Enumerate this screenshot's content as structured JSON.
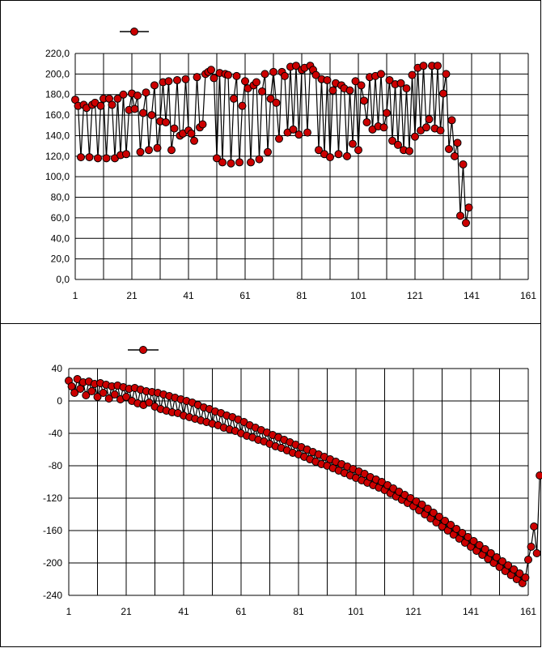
{
  "chart_data": [
    {
      "type": "line",
      "title": "",
      "xlabel": "",
      "ylabel": "",
      "xlim": [
        1,
        161
      ],
      "ylim": [
        0,
        220
      ],
      "x_ticks": [
        "1",
        "21",
        "41",
        "61",
        "81",
        "101",
        "121",
        "141",
        "161"
      ],
      "y_ticks": [
        "0,0",
        "20,0",
        "40,0",
        "60,0",
        "80,0",
        "100,0",
        "120,0",
        "140,0",
        "160,0",
        "180,0",
        "200,0",
        "220,0"
      ],
      "grid": true,
      "legend": "top-left",
      "series": [
        {
          "name": "",
          "color": "#cc0000",
          "marker": "circle",
          "x_start": 1,
          "values": [
            175,
            169,
            119,
            170,
            167,
            119,
            170,
            172,
            118,
            169,
            176,
            118,
            176,
            170,
            118,
            176,
            121,
            180,
            122,
            165,
            181,
            166,
            179,
            124,
            162,
            182,
            126,
            160,
            189,
            128,
            154,
            192,
            153,
            193,
            126,
            147,
            194,
            140,
            142,
            195,
            145,
            142,
            135,
            197,
            148,
            151,
            200,
            202,
            204,
            196,
            118,
            201,
            114,
            200,
            199,
            113,
            176,
            198,
            114,
            169,
            193,
            186,
            114,
            189,
            192,
            117,
            183,
            200,
            124,
            176,
            202,
            172,
            137,
            202,
            198,
            143,
            207,
            146,
            208,
            141,
            204,
            206,
            143,
            208,
            204,
            199,
            126,
            195,
            122,
            194,
            119,
            184,
            191,
            122,
            189,
            186,
            120,
            184,
            132,
            193,
            126,
            189,
            174,
            153,
            197,
            146,
            198,
            149,
            200,
            148,
            162,
            194,
            135,
            190,
            131,
            191,
            126,
            186,
            125,
            199,
            139,
            206,
            145,
            208,
            148,
            156,
            208,
            147,
            208,
            145,
            181,
            200,
            127,
            155,
            120,
            133,
            62,
            112,
            55,
            70
          ]
        }
      ]
    },
    {
      "type": "line",
      "title": "",
      "xlabel": "",
      "ylabel": "",
      "xlim": [
        1,
        161
      ],
      "ylim": [
        -240,
        40
      ],
      "x_ticks": [
        "1",
        "21",
        "41",
        "61",
        "81",
        "101",
        "121",
        "141",
        "161"
      ],
      "y_ticks": [
        "40",
        "0",
        "-40",
        "-80",
        "-120",
        "-160",
        "-200",
        "-240"
      ],
      "grid": true,
      "legend": "top-left",
      "series": [
        {
          "name": "",
          "color": "#cc0000",
          "marker": "circle",
          "x_start": 1,
          "values": [
            25,
            18,
            10,
            27,
            15,
            23,
            7,
            24,
            12,
            21,
            5,
            22,
            10,
            20,
            3,
            18,
            8,
            19,
            2,
            17,
            5,
            15,
            0,
            16,
            -3,
            14,
            -5,
            12,
            -2,
            11,
            -7,
            10,
            -10,
            8,
            -12,
            6,
            -14,
            4,
            -15,
            2,
            -18,
            0,
            -20,
            -2,
            -22,
            -5,
            -24,
            -8,
            -26,
            -10,
            -28,
            -13,
            -30,
            -15,
            -33,
            -18,
            -35,
            -20,
            -37,
            -23,
            -40,
            -26,
            -43,
            -30,
            -45,
            -33,
            -48,
            -36,
            -50,
            -39,
            -53,
            -42,
            -56,
            -45,
            -58,
            -48,
            -61,
            -51,
            -64,
            -54,
            -66,
            -57,
            -69,
            -60,
            -72,
            -63,
            -75,
            -66,
            -78,
            -69,
            -80,
            -72,
            -83,
            -75,
            -86,
            -78,
            -89,
            -81,
            -92,
            -84,
            -95,
            -87,
            -98,
            -90,
            -101,
            -94,
            -104,
            -97,
            -107,
            -100,
            -110,
            -104,
            -114,
            -108,
            -118,
            -112,
            -122,
            -116,
            -126,
            -120,
            -130,
            -124,
            -135,
            -128,
            -140,
            -133,
            -145,
            -138,
            -150,
            -143,
            -155,
            -148,
            -160,
            -153,
            -165,
            -158,
            -170,
            -163,
            -175,
            -168,
            -180,
            -173,
            -185,
            -178,
            -190,
            -183,
            -195,
            -188,
            -200,
            -193,
            -205,
            -198,
            -210,
            -203,
            -215,
            -208,
            -220,
            -213,
            -225,
            -218,
            -196,
            -180,
            -155,
            -188,
            -92
          ]
        }
      ]
    }
  ]
}
